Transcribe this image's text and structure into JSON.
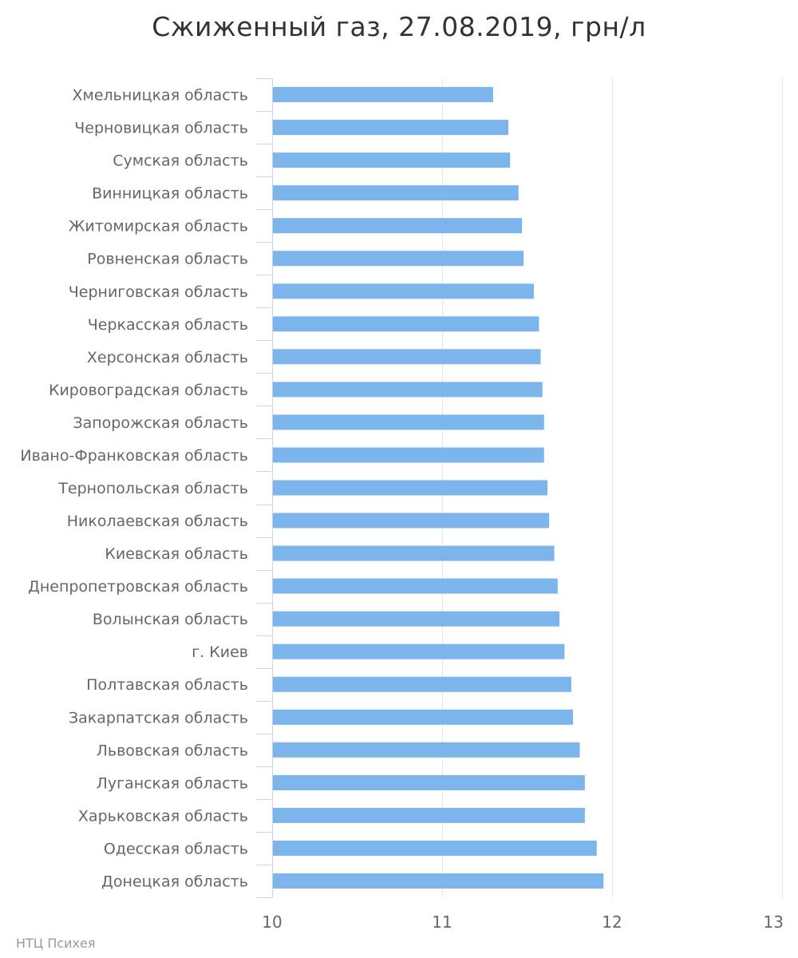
{
  "title": "Сжиженный газ, 27.08.2019, грн/л",
  "credit": "НТЦ Психея",
  "colors": {
    "bar": "#7cb5ec",
    "grid": "#e6e6e6",
    "axis_line": "#ccd6eb",
    "label": "#666666",
    "title": "#333333",
    "credit": "#999999"
  },
  "chart_data": {
    "type": "bar",
    "orientation": "horizontal",
    "title": "Сжиженный газ, 27.08.2019, грн/л",
    "xlabel": "",
    "ylabel": "",
    "xlim": [
      10,
      13
    ],
    "ticks": [
      10,
      11,
      12,
      13
    ],
    "grid": true,
    "legend": false,
    "categories": [
      "Хмельницкая область",
      "Черновицкая область",
      "Сумская область",
      "Винницкая область",
      "Житомирская область",
      "Ровненская область",
      "Черниговская область",
      "Черкасская область",
      "Херсонская область",
      "Кировоградская область",
      "Запорожская область",
      "Ивано-Франковская область",
      "Тернопольская область",
      "Николаевская область",
      "Киевская область",
      "Днепропетровская область",
      "Волынская область",
      "г. Киев",
      "Полтавская область",
      "Закарпатская область",
      "Львовская область",
      "Луганская область",
      "Харьковская область",
      "Одесская область",
      "Донецкая область"
    ],
    "values": [
      11.3,
      11.39,
      11.4,
      11.45,
      11.47,
      11.48,
      11.54,
      11.57,
      11.58,
      11.59,
      11.6,
      11.6,
      11.62,
      11.63,
      11.66,
      11.68,
      11.69,
      11.72,
      11.76,
      11.77,
      11.81,
      11.84,
      11.84,
      11.91,
      11.95
    ]
  }
}
